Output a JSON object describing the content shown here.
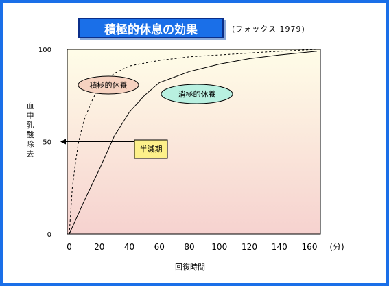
{
  "title": "積極的休息の効果",
  "source": "(フォックス 1979)",
  "chart_data": {
    "type": "line",
    "xlabel": "回復時間",
    "x_unit": "(分)",
    "ylabel": "血中乳酸除去",
    "xlim": [
      0,
      165
    ],
    "ylim": [
      0,
      100
    ],
    "x_ticks": [
      "0",
      "20",
      "40",
      "60",
      "80",
      "100",
      "120",
      "140",
      "160"
    ],
    "y_ticks": [
      "0",
      "50",
      "100"
    ],
    "series": [
      {
        "name": "積極的休養",
        "style": "dashed",
        "x": [
          0,
          2,
          4,
          6,
          8,
          10,
          15,
          20,
          30,
          40,
          60,
          80,
          100,
          130,
          165
        ],
        "y": [
          0,
          25,
          38,
          49,
          56,
          62,
          72,
          80,
          87,
          91,
          94,
          96,
          97,
          98.5,
          100
        ]
      },
      {
        "name": "消極的休養",
        "style": "solid",
        "x": [
          0,
          10,
          20,
          30,
          40,
          50,
          60,
          80,
          100,
          120,
          140,
          165
        ],
        "y": [
          0,
          18,
          35,
          53,
          66,
          75,
          82,
          88,
          92,
          95,
          97,
          99
        ]
      }
    ],
    "annotations": {
      "half_life_label": "半減期",
      "half_value": 50
    },
    "colors": {
      "active_bubble": "#f6d2c0",
      "passive_bubble": "#b8f0e0",
      "half_box": "#fdf08a",
      "frame": "#1a6fe8",
      "plot_bg_top": "#fffde8",
      "plot_bg_bottom": "#f6d2cf"
    }
  }
}
